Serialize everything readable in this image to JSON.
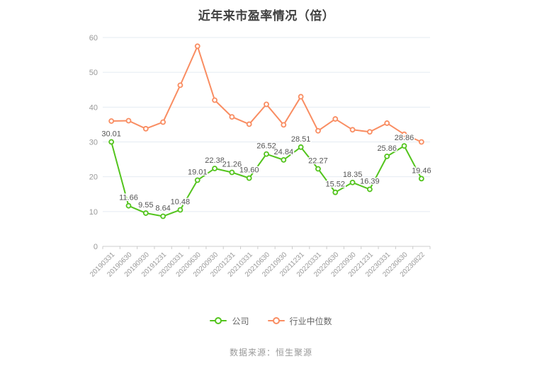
{
  "title": "近年来市盈率情况（倍）",
  "footer": {
    "source": "数据来源：恒生聚源"
  },
  "colors": {
    "company": "#53c41d",
    "industry": "#f98d62",
    "grid_line": "#e4ebf2",
    "axis_line": "#cccccc",
    "tick_label": "#999999",
    "value_label": "#555555",
    "title_text": "#404040",
    "legend_text": "#666666"
  },
  "chart_data": {
    "type": "line",
    "title": "近年来市盈率情况（倍）",
    "xlabel": "",
    "ylabel": "",
    "ylim": [
      0,
      60
    ],
    "yticks": [
      0,
      10,
      20,
      30,
      40,
      50,
      60
    ],
    "grid": true,
    "legend_position": "bottom",
    "categories": [
      "20190331",
      "20190630",
      "20190930",
      "20191231",
      "20200331",
      "20200630",
      "20200930",
      "20201231",
      "20210331",
      "20210630",
      "20210930",
      "20211231",
      "20220331",
      "20220630",
      "20220930",
      "20221231",
      "20230331",
      "20230630",
      "20230822"
    ],
    "series": [
      {
        "key": "company",
        "name": "公司",
        "color": "#53c41d",
        "show_labels": true,
        "values": [
          30.01,
          11.66,
          9.55,
          8.64,
          10.48,
          19.01,
          22.38,
          21.26,
          19.6,
          26.52,
          24.84,
          28.51,
          22.27,
          15.52,
          18.35,
          16.39,
          25.86,
          28.86,
          19.46
        ],
        "labels": [
          "30.01",
          "11.66",
          "9.55",
          "8.64",
          "10.48",
          "19.01",
          "22.38",
          "21.26",
          "19.60",
          "26.52",
          "24.84",
          "28.51",
          "22.27",
          "15.52",
          "18.35",
          "16.39",
          "25.86",
          "28.86",
          "19.46"
        ]
      },
      {
        "key": "industry-median",
        "name": "行业中位数",
        "color": "#f98d62",
        "show_labels": false,
        "values": [
          36.0,
          36.1,
          33.8,
          35.7,
          46.3,
          57.5,
          42.0,
          37.2,
          35.1,
          40.8,
          34.9,
          43.0,
          33.2,
          36.6,
          33.5,
          32.9,
          35.4,
          32.2,
          30.0
        ]
      }
    ]
  }
}
